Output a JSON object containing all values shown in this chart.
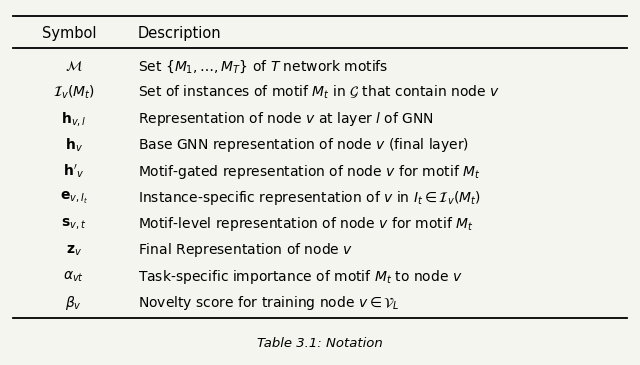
{
  "title": "Table 3.1: Notation",
  "header": [
    "Symbol",
    "Description"
  ],
  "rows": [
    [
      "$\\mathcal{M}$",
      "Set $\\{M_1,\\ldots,M_T\\}$ of $T$ network motifs"
    ],
    [
      "$\\mathcal{I}_v(M_t)$",
      "Set of instances of motif $M_t$ in $\\mathcal{G}$ that contain node $v$"
    ],
    [
      "$\\mathbf{h}_{v,l}$",
      "Representation of node $v$ at layer $l$ of GNN"
    ],
    [
      "$\\mathbf{h}_v$",
      "Base GNN representation of node $v$ (final layer)"
    ],
    [
      "$\\mathbf{h}'_v$",
      "Motif-gated representation of node $v$ for motif $M_t$"
    ],
    [
      "$\\mathbf{e}_{v,I_t}$",
      "Instance-specific representation of $v$ in $I_t \\in \\mathcal{I}_v(M_t)$"
    ],
    [
      "$\\mathbf{s}_{v,t}$",
      "Motif-level representation of node $v$ for motif $M_t$"
    ],
    [
      "$\\mathbf{z}_v$",
      "Final Representation of node $v$"
    ],
    [
      "$\\alpha_{vt}$",
      "Task-specific importance of motif $M_t$ to node $v$"
    ],
    [
      "$\\beta_v$",
      "Novelty score for training node $v \\in \\mathcal{V}_L$"
    ]
  ],
  "bg_color": "#f5f5f0",
  "text_color": "black",
  "line_color": "black",
  "font_size": 10.0,
  "header_font_size": 10.5,
  "figsize": [
    6.4,
    3.65
  ],
  "dpi": 100
}
